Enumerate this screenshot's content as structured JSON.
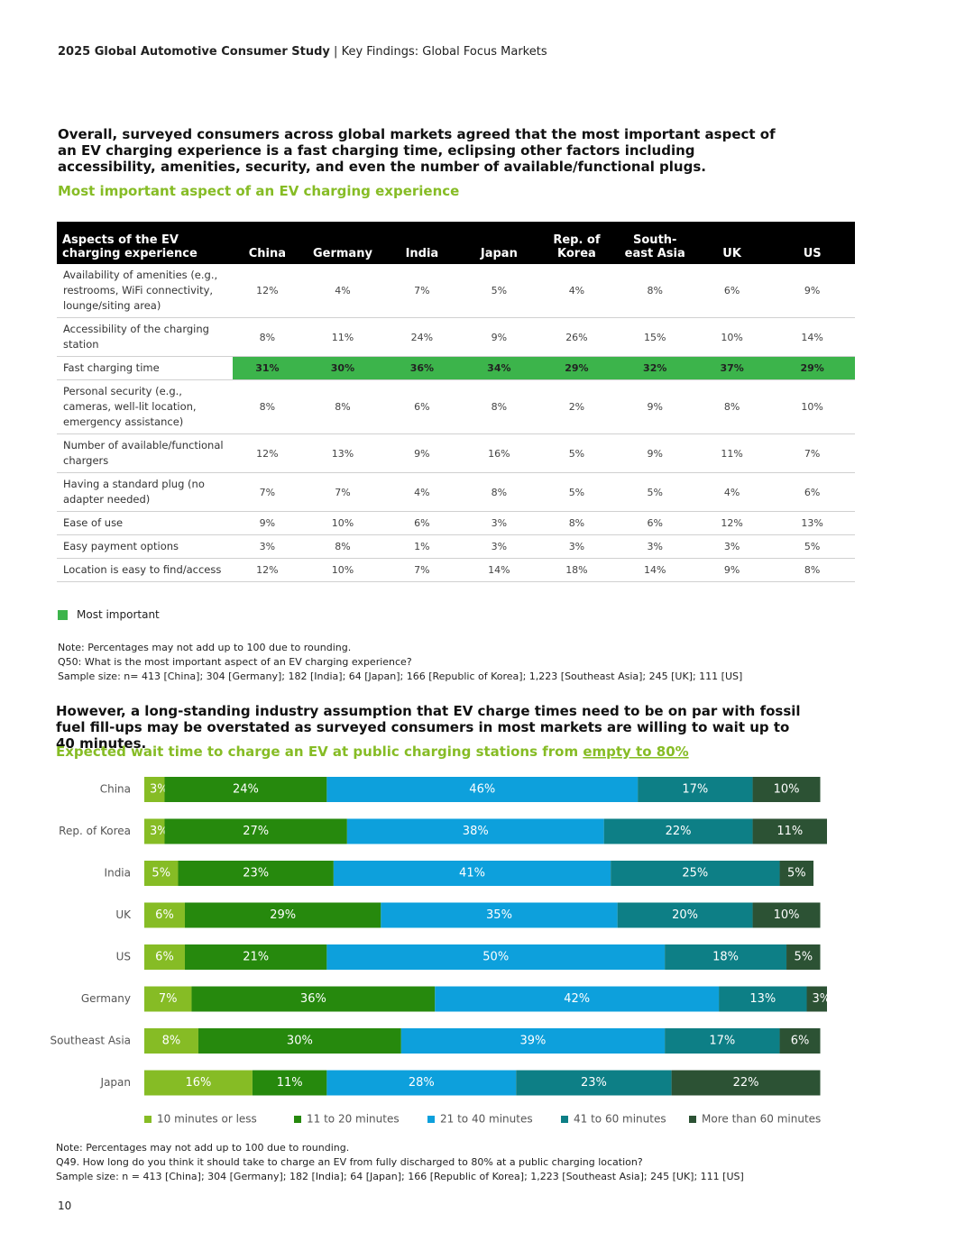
{
  "header": {
    "title": "2025 Global Automotive Consumer Study",
    "separator": "|",
    "subtitle": "Key Findings: Global Focus Markets"
  },
  "section1": {
    "intro": "Overall, surveyed consumers across global markets agreed that the most important aspect of an EV charging experience is a fast charging time, eclipsing other factors including accessibility, amenities, security, and even the number of available/functional plugs.",
    "subtitle": "Most important aspect of an EV charging experience"
  },
  "table": {
    "columns": [
      "Aspects of the EV charging experience",
      "China",
      "Germany",
      "India",
      "Japan",
      "Rep. of Korea",
      "South-east Asia",
      "UK",
      "US"
    ],
    "rows": [
      [
        "Availability of amenities (e.g., restrooms, WiFi connectivity, lounge/siting area)",
        "12%",
        "4%",
        "7%",
        "5%",
        "4%",
        "8%",
        "6%",
        "9%"
      ],
      [
        "Accessibility of the charging station",
        "8%",
        "11%",
        "24%",
        "9%",
        "26%",
        "15%",
        "10%",
        "14%"
      ],
      [
        "Fast charging time",
        "31%",
        "30%",
        "36%",
        "34%",
        "29%",
        "32%",
        "37%",
        "29%"
      ],
      [
        "Personal security (e.g., cameras, well-lit location, emergency assistance)",
        "8%",
        "8%",
        "6%",
        "8%",
        "2%",
        "9%",
        "8%",
        "10%"
      ],
      [
        "Number of available/functional chargers",
        "12%",
        "13%",
        "9%",
        "16%",
        "5%",
        "9%",
        "11%",
        "7%"
      ],
      [
        "Having a standard plug (no adapter needed)",
        "7%",
        "7%",
        "4%",
        "8%",
        "5%",
        "5%",
        "4%",
        "6%"
      ],
      [
        "Ease of use",
        "9%",
        "10%",
        "6%",
        "3%",
        "8%",
        "6%",
        "12%",
        "13%"
      ],
      [
        "Easy payment options",
        "3%",
        "8%",
        "1%",
        "3%",
        "3%",
        "3%",
        "3%",
        "5%"
      ],
      [
        "Location is easy to find/access",
        "12%",
        "10%",
        "7%",
        "14%",
        "18%",
        "14%",
        "9%",
        "8%"
      ]
    ],
    "highlight_row": 2,
    "highlight_color": "#3cb44b"
  },
  "legend": {
    "label": "Most important",
    "color": "#3cb44b"
  },
  "notes1": [
    "Note: Percentages may not add up to 100 due to rounding.",
    "Q50: What is the most important aspect of an EV charging experience?",
    "Sample size: n= 413 [China]; 304 [Germany]; 182 [India]; 64 [Japan]; 166 [Republic of Korea]; 1,223 [Southeast Asia]; 245 [UK]; 111 [US]"
  ],
  "section2": {
    "intro": "However, a long-standing industry assumption that EV charge times need to be on par with fossil fuel fill-ups may be overstated as surveyed consumers in most markets are willing to wait up to 40 minutes."
  },
  "chart_data": {
    "type": "stacked-bar",
    "orientation": "horizontal",
    "title": "Expected wait time to charge an EV at public charging stations from",
    "title_link": "empty to 80%",
    "categories": [
      "China",
      "Rep. of Korea",
      "India",
      "UK",
      "US",
      "Germany",
      "Southeast Asia",
      "Japan"
    ],
    "series": [
      {
        "name": "10 minutes or less",
        "color": "#86bc25",
        "values": [
          3,
          3,
          5,
          6,
          6,
          7,
          8,
          16
        ],
        "value_labels": [
          "3%",
          "3%",
          "5%",
          "6%",
          "6%",
          "7%",
          "8%",
          "16%"
        ]
      },
      {
        "name": "11 to 20 minutes",
        "color": "#26890d",
        "values": [
          24,
          27,
          23,
          29,
          21,
          36,
          30,
          11
        ],
        "value_labels": [
          "24%",
          "27%",
          "23%",
          "29%",
          "21%",
          "36%",
          "30%",
          "11%"
        ]
      },
      {
        "name": "21 to 40 minutes",
        "color": "#0da0dc",
        "values": [
          46,
          38,
          41,
          35,
          50,
          42,
          39,
          28
        ],
        "value_labels": [
          "46%",
          "38%",
          "41%",
          "35%",
          "50%",
          "42%",
          "39%",
          "28%"
        ]
      },
      {
        "name": "41 to 60 minutes",
        "color": "#0d7f86",
        "values": [
          17,
          22,
          25,
          20,
          18,
          13,
          17,
          23
        ],
        "value_labels": [
          "17%",
          "22%",
          "25%",
          "20%",
          "18%",
          "13%",
          "17%",
          "23%"
        ]
      },
      {
        "name": "More than 60 minutes",
        "color": "#2c5234",
        "values": [
          10,
          11,
          5,
          10,
          5,
          3,
          6,
          22
        ],
        "value_labels": [
          "10%",
          "11%",
          "5%",
          "10%",
          "5%",
          "3%",
          "6%",
          "22%"
        ]
      }
    ]
  },
  "notes2": [
    "Note: Percentages may not add up to 100 due to rounding.",
    "Q49. How long do you think it should take to charge an EV from fully discharged to 80% at a public charging location?",
    "Sample size: n = 413 [China]; 304 [Germany]; 182 [India]; 64 [Japan]; 166 [Republic of Korea]; 1,223 [Southeast Asia]; 245 [UK]; 111 [US]"
  ],
  "page_number": "10"
}
